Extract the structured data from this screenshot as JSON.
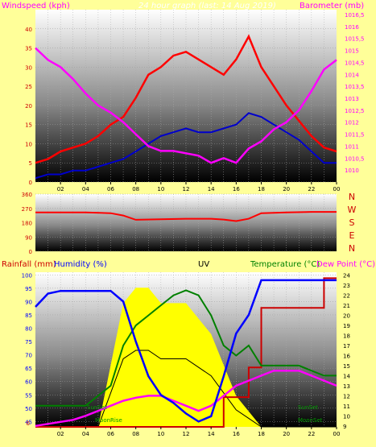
{
  "header": {
    "title": "24 hour graph (last: 14 Aug 2019)",
    "left_label": "Windspeed (kph)",
    "right_label": "Barometer (mb)"
  },
  "bottom_header": {
    "rain_label": "Rainfall (mm)",
    "hum_label": "Humidity (%)",
    "uv_label": "UV",
    "temp_label": "Temperature (°C)",
    "dew_label": "Dew Point (°C)"
  },
  "direction_labels": [
    "N",
    "W",
    "S",
    "E",
    "N"
  ],
  "annotations": {
    "sunset_left": "SunSet",
    "sunset_right": "SunSet",
    "moonrise": "MoonRise",
    "moonset": "MoonSet"
  },
  "colors": {
    "wind": "#ff0000",
    "gust_avg": "#0000cc",
    "baro": "#ff00ff",
    "humidity": "#0000ff",
    "temp": "#008000",
    "rain": "#cc0000",
    "uv": "#ffff00",
    "solar": "#000000",
    "dew": "#ff00ff",
    "sunmoon": "#009900"
  },
  "chart_data": [
    {
      "type": "line",
      "name": "wind-baro",
      "x_ticks": [
        "02",
        "04",
        "06",
        "08",
        "10",
        "12",
        "14",
        "16",
        "18",
        "20",
        "22",
        "00"
      ],
      "ylim": [
        0,
        45
      ],
      "y_ticks": [
        0,
        5,
        10,
        15,
        20,
        25,
        30,
        35,
        40
      ],
      "y2lim": [
        1009.5,
        1016.7
      ],
      "y2_ticks": [
        "1010",
        "1010,5",
        "1011",
        "1011,5",
        "1012",
        "1012,5",
        "1013",
        "1013,5",
        "1014",
        "1014,5",
        "1015",
        "1015,5",
        "1016",
        "1016,5"
      ],
      "hours": [
        0,
        1,
        2,
        3,
        4,
        5,
        6,
        7,
        8,
        9,
        10,
        11,
        12,
        13,
        14,
        15,
        16,
        17,
        18,
        19,
        20,
        21,
        22,
        23,
        24
      ],
      "wind_avg": [
        1,
        2,
        2,
        3,
        3,
        4,
        5,
        6,
        8,
        10,
        12,
        13,
        14,
        13,
        13,
        14,
        15,
        18,
        17,
        15,
        13,
        11,
        8,
        5,
        5
      ],
      "wind_gust": [
        5,
        6,
        8,
        9,
        10,
        12,
        15,
        17,
        22,
        28,
        30,
        33,
        34,
        32,
        30,
        28,
        32,
        38,
        30,
        25,
        20,
        16,
        12,
        9,
        8
      ],
      "baro": [
        1015.1,
        1014.6,
        1014.3,
        1013.8,
        1013.2,
        1012.7,
        1012.4,
        1012.0,
        1011.5,
        1011.0,
        1010.8,
        1010.8,
        1010.7,
        1010.6,
        1010.3,
        1010.5,
        1010.3,
        1010.9,
        1011.2,
        1011.7,
        1012.0,
        1012.5,
        1013.3,
        1014.2,
        1014.6
      ]
    },
    {
      "type": "line",
      "name": "direction",
      "ylim": [
        0,
        360
      ],
      "y_ticks": [
        0,
        90,
        180,
        270,
        360
      ],
      "hours": [
        0,
        2,
        4,
        6,
        7,
        8,
        10,
        12,
        14,
        15,
        16,
        17,
        18,
        20,
        22,
        24
      ],
      "dir": [
        245,
        245,
        245,
        240,
        225,
        198,
        202,
        205,
        205,
        200,
        190,
        205,
        240,
        245,
        248,
        248
      ]
    },
    {
      "type": "line",
      "name": "rain-hum-temp",
      "hum_ylim": [
        43,
        101
      ],
      "hum_ticks": [
        45,
        50,
        55,
        60,
        65,
        70,
        75,
        80,
        85,
        90,
        95,
        100
      ],
      "temp_ylim": [
        8.9,
        24.3
      ],
      "temp_ticks": [
        9,
        10,
        11,
        12,
        13,
        14,
        15,
        16,
        17,
        18,
        19,
        20,
        21,
        22,
        23,
        24
      ],
      "hours": [
        0,
        1,
        2,
        3,
        4,
        5,
        6,
        7,
        8,
        9,
        10,
        11,
        12,
        13,
        14,
        15,
        16,
        17,
        18,
        19,
        20,
        21,
        22,
        23,
        24
      ],
      "humidity": [
        88,
        93,
        94,
        94,
        94,
        94,
        94,
        90,
        75,
        62,
        55,
        52,
        48,
        45,
        47,
        62,
        78,
        85,
        98,
        98,
        98,
        98,
        98,
        98,
        98
      ],
      "temperature": [
        11,
        11,
        11,
        11,
        11,
        12,
        13,
        17,
        19,
        20,
        21,
        22,
        22.5,
        22,
        20,
        17,
        16,
        17,
        15,
        15,
        15,
        15,
        14.5,
        14,
        14
      ],
      "dewpoint": [
        9,
        9.2,
        9.4,
        9.6,
        10,
        10.5,
        11,
        11.5,
        11.8,
        12,
        12,
        11.5,
        11,
        10.5,
        11,
        12,
        13,
        13.5,
        14,
        14.5,
        14.5,
        14.5,
        14,
        13.5,
        13
      ],
      "rain": [
        0,
        0,
        0,
        0,
        0,
        0,
        0,
        0,
        0,
        0,
        0,
        0,
        0,
        0,
        0,
        1,
        1,
        2,
        4,
        4,
        4,
        4,
        4,
        5,
        5
      ],
      "rain_ylim": [
        0,
        5.2
      ],
      "uv": [
        0,
        0,
        0,
        0,
        0,
        0,
        4,
        8,
        9,
        9,
        8,
        8,
        8,
        7,
        6,
        4,
        2,
        1,
        0,
        0,
        0,
        0,
        0,
        0,
        0
      ],
      "uv_ylim": [
        0,
        10
      ]
    }
  ]
}
